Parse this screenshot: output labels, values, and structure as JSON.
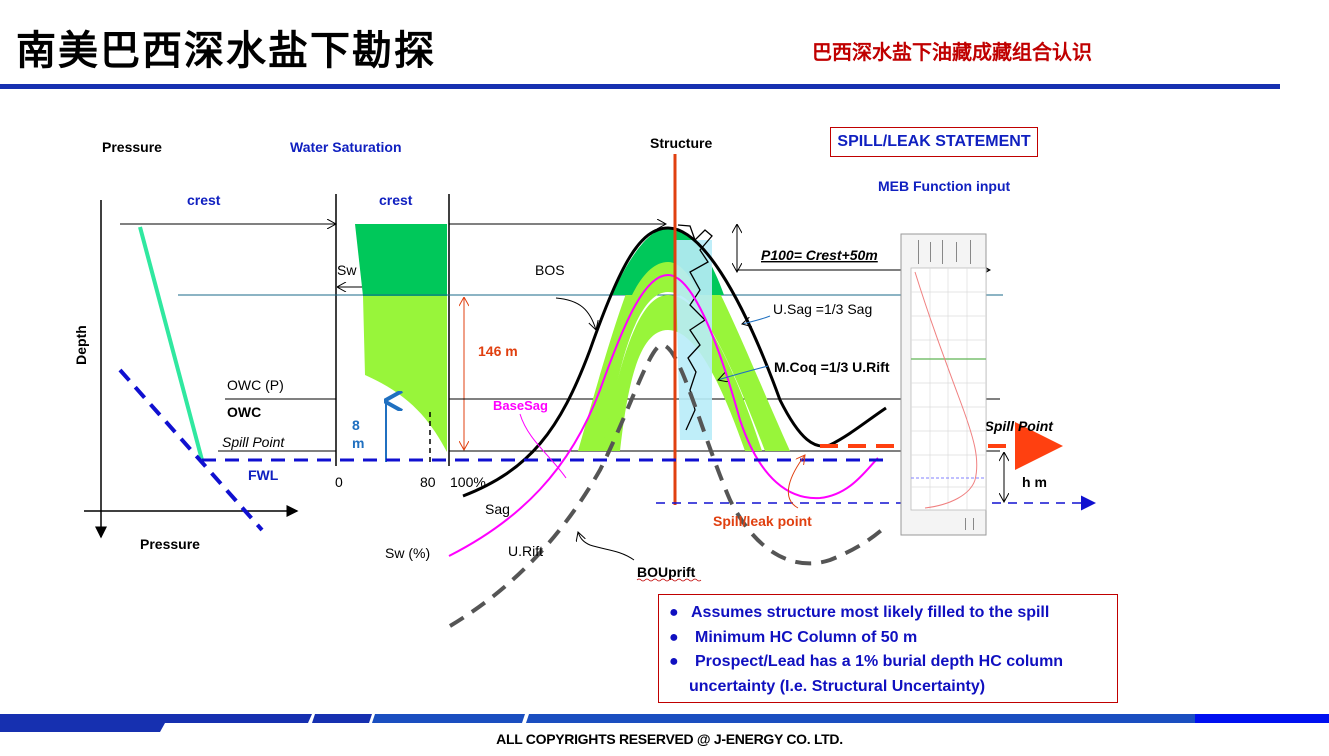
{
  "header": {
    "title": "南美巴西深水盐下勘探",
    "subtitle": "巴西深水盐下油藏成藏组合认识"
  },
  "left_chart": {
    "pressure_top": "Pressure",
    "pressure_bottom": "Pressure",
    "depth": "Depth",
    "crest": "crest",
    "owc_p": "OWC (P)",
    "owc": "OWC",
    "spill_point": "Spill Point",
    "fwl": "FWL"
  },
  "saturation_chart": {
    "title": "Water Saturation",
    "crest": "crest",
    "sw": "Sw",
    "column_146": "146 m",
    "column_8": "8",
    "column_8_unit": "m",
    "tick_0": "0",
    "tick_80": "80",
    "tick_100": "100%",
    "sw_pct": "Sw (%)"
  },
  "structure": {
    "title": "Structure",
    "bos": "BOS",
    "basesag": "BaseSag",
    "sag": "Sag",
    "urift": "U.Rift",
    "bouprift": "BOUprift",
    "usag": "U.Sag =1/3 Sag",
    "mcoq": "M.Coq =1/3 U.Rift",
    "p100": "P100= Crest+50m",
    "mode": "Mode = Spill Point",
    "hm": "h m",
    "spill_leak": "Spill/leak point"
  },
  "spill_statement": "SPILL/LEAK STATEMENT",
  "meb_input": "MEB Function input",
  "notes": [
    "Assumes structure most likely filled to the spill",
    "Minimum HC Column of 50 m",
    "Prospect/Lead has a 1% burial depth HC column",
    "uncertainty (I.e. Structural Uncertainty)"
  ],
  "bullet": "●",
  "footer": "ALL COPYRIGHTS RESERVED @ J-ENERGY CO. LTD.",
  "colors": {
    "brand_blue": "#1630b0",
    "red": "#c00000",
    "label_blue": "#1020c0",
    "dark_green": "#00c85a",
    "light_green": "#98f53a",
    "magenta": "#ff00ff",
    "orange": "#ff4010"
  }
}
